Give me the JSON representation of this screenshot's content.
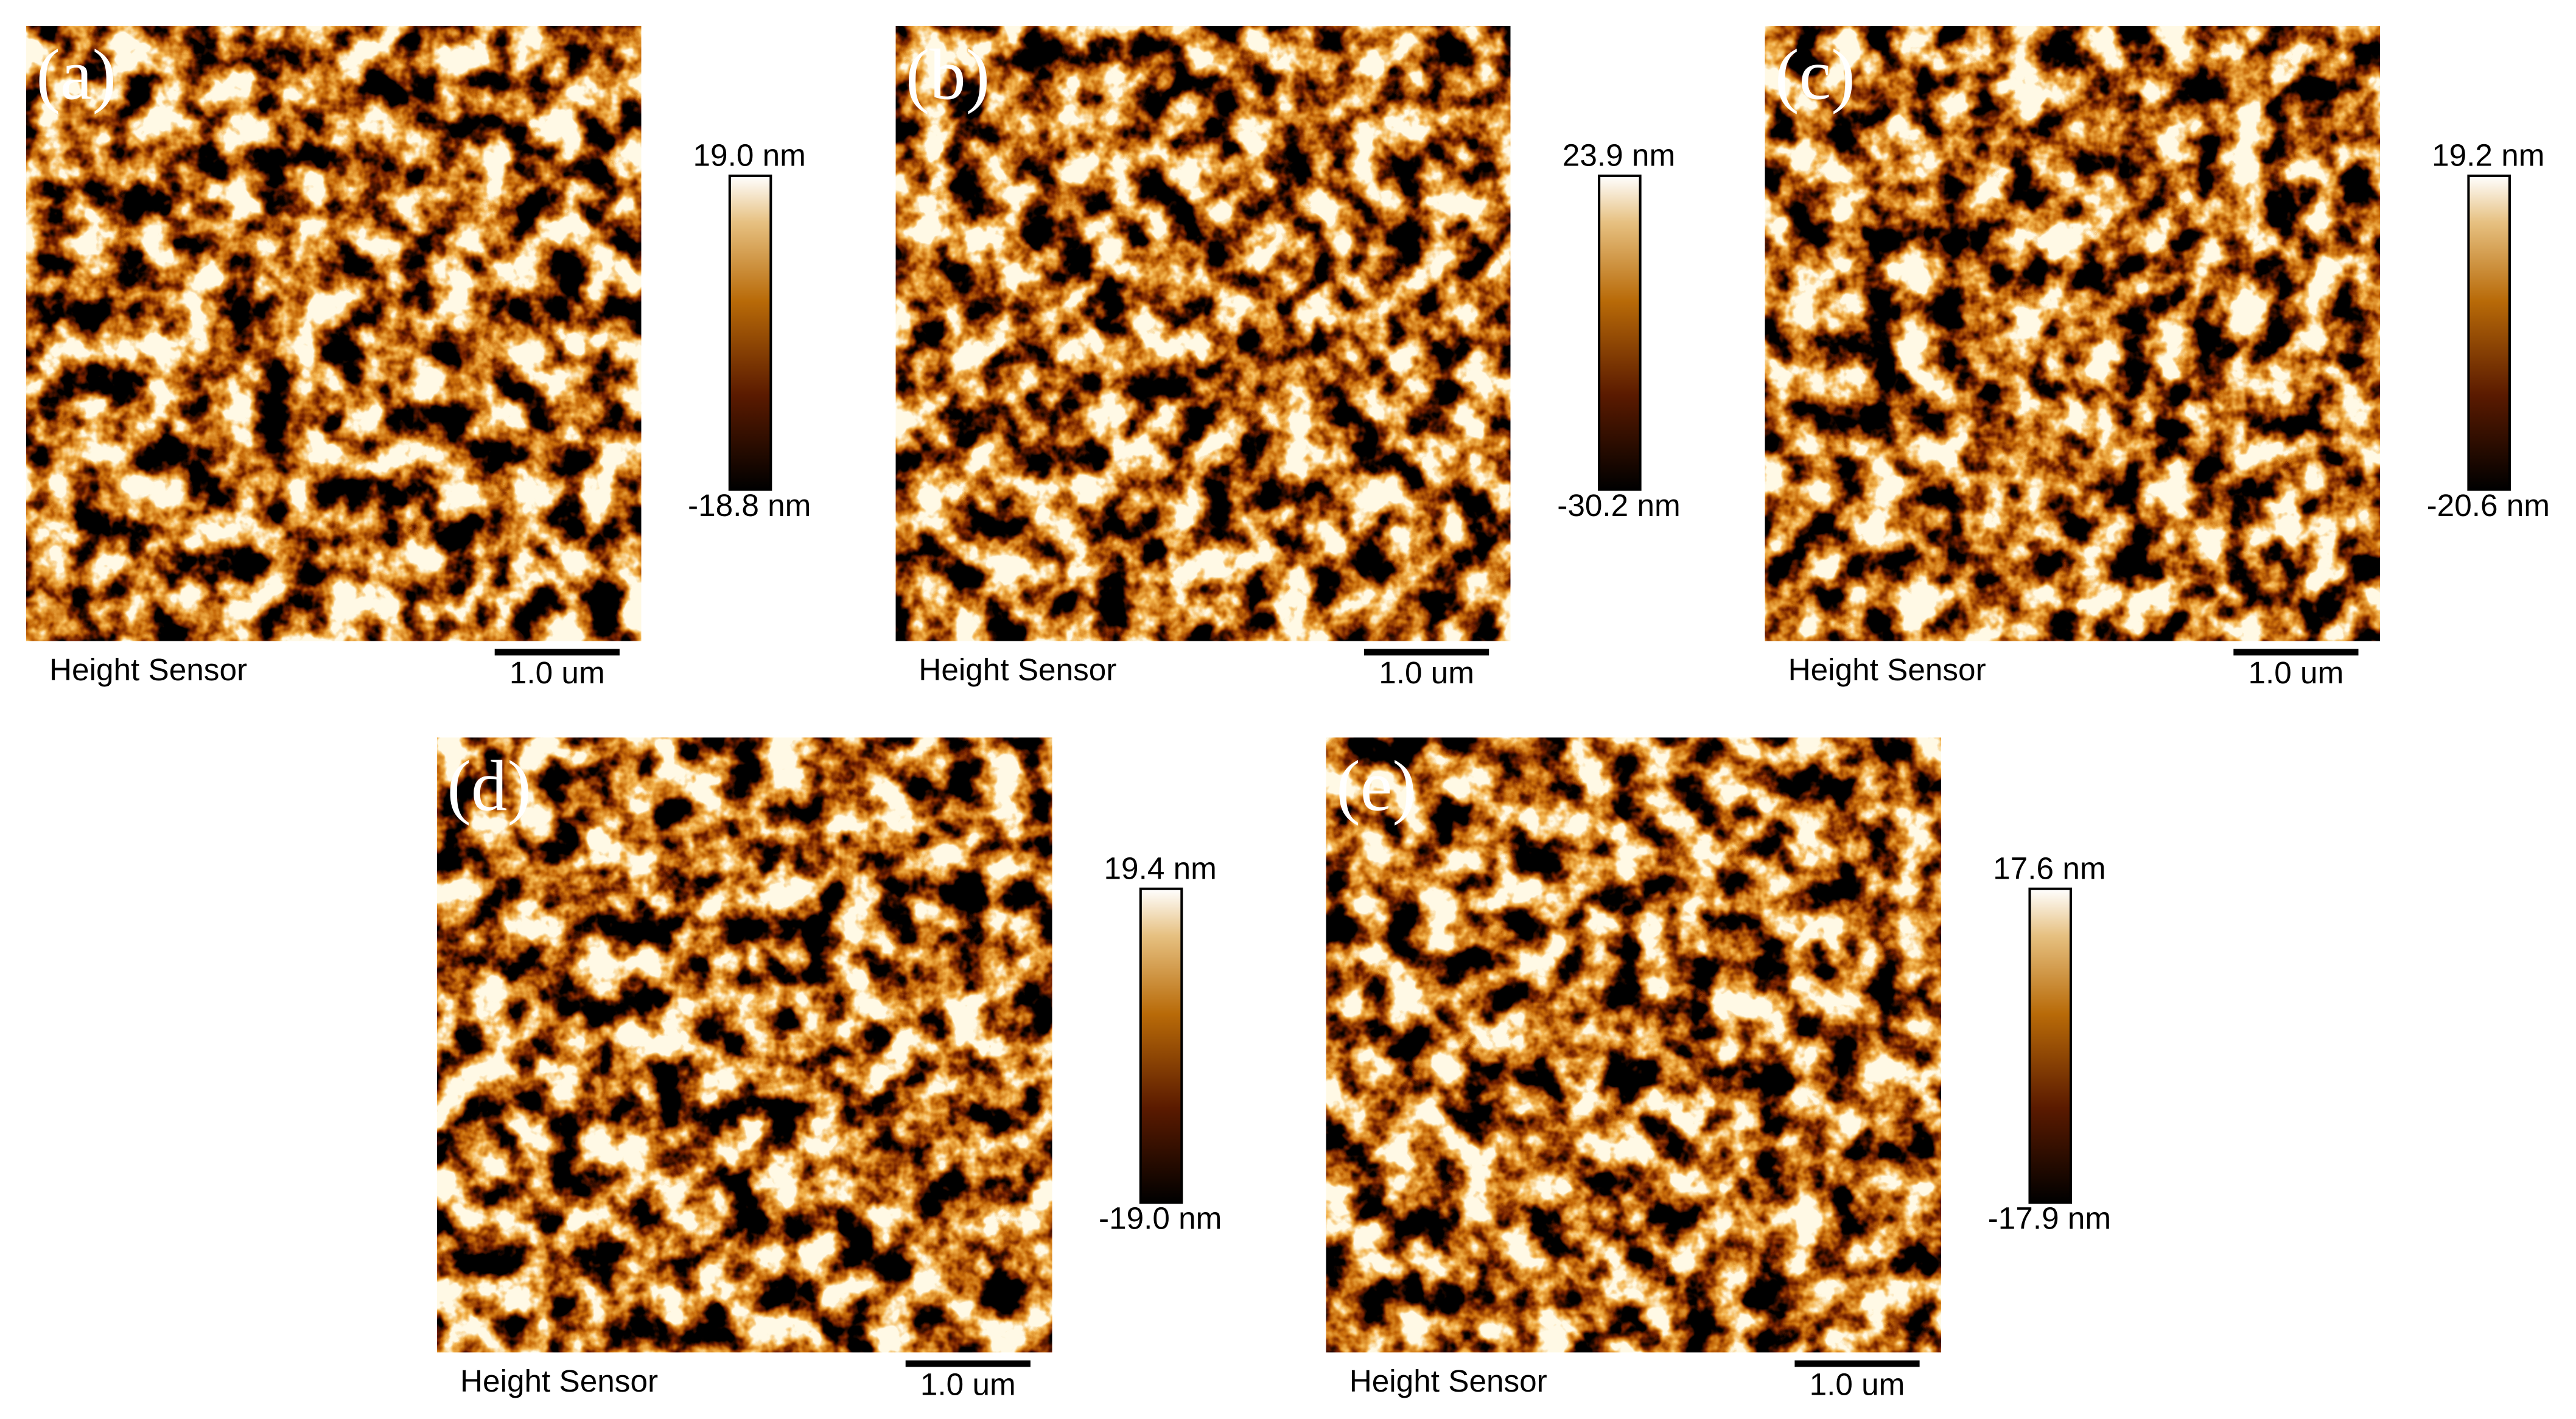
{
  "panels": [
    {
      "label": "(a)",
      "max": "19.0 nm",
      "min": "-18.8 nm",
      "sensor": "Height Sensor",
      "scale": "1.0 um"
    },
    {
      "label": "(b)",
      "max": "23.9 nm",
      "min": "-30.2 nm",
      "sensor": "Height Sensor",
      "scale": "1.0 um"
    },
    {
      "label": "(c)",
      "max": "19.2 nm",
      "min": "-20.6 nm",
      "sensor": "Height Sensor",
      "scale": "1.0 um"
    },
    {
      "label": "(d)",
      "max": "19.4 nm",
      "min": "-19.0 nm",
      "sensor": "Height Sensor",
      "scale": "1.0 um"
    },
    {
      "label": "(e)",
      "max": "17.6 nm",
      "min": "-17.9 nm",
      "sensor": "Height Sensor",
      "scale": "1.0 um"
    }
  ]
}
